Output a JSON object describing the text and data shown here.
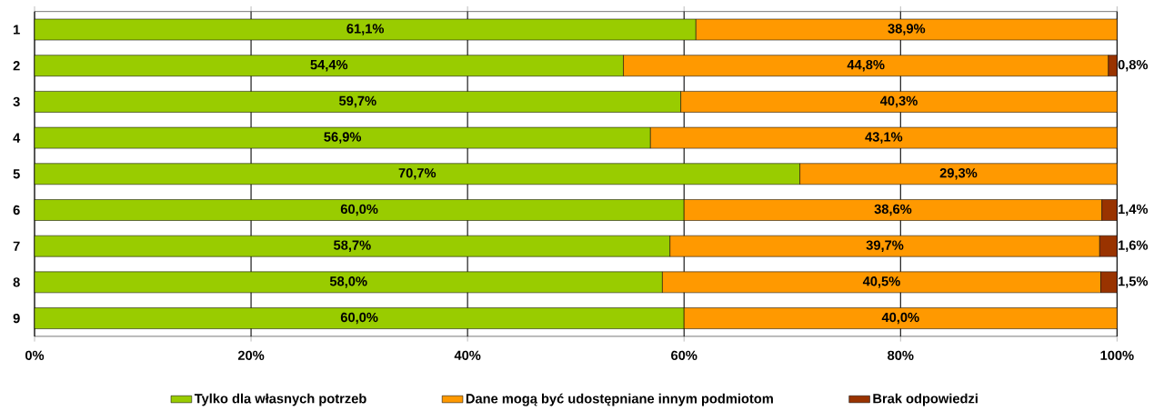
{
  "chart_data": {
    "type": "bar",
    "orientation": "horizontal",
    "stacked": true,
    "grid": "x",
    "legend": "bottom",
    "categories": [
      "1",
      "2",
      "3",
      "4",
      "5",
      "6",
      "7",
      "8",
      "9"
    ],
    "xlim": [
      0,
      100
    ],
    "xticks": [
      {
        "value": 0,
        "label": "0%"
      },
      {
        "value": 20,
        "label": "20%"
      },
      {
        "value": 40,
        "label": "40%"
      },
      {
        "value": 60,
        "label": "60%"
      },
      {
        "value": 80,
        "label": "80%"
      },
      {
        "value": 100,
        "label": "100%"
      }
    ],
    "series": [
      {
        "name": "Tylko dla własnych potrzeb",
        "color": "#99cc00",
        "values": [
          61.1,
          54.4,
          59.7,
          56.9,
          70.7,
          60.0,
          58.7,
          58.0,
          60.0
        ],
        "value_labels": [
          "61,1%",
          "54,4%",
          "59,7%",
          "56,9%",
          "70,7%",
          "60,0%",
          "58,7%",
          "58,0%",
          "60,0%"
        ]
      },
      {
        "name": "Dane mogą być udostępniane innym podmiotom",
        "color": "#ff9900",
        "values": [
          38.9,
          44.8,
          40.3,
          43.1,
          29.3,
          38.6,
          39.7,
          40.5,
          40.0
        ],
        "value_labels": [
          "38,9%",
          "44,8%",
          "40,3%",
          "43,1%",
          "29,3%",
          "38,6%",
          "39,7%",
          "40,5%",
          "40,0%"
        ]
      },
      {
        "name": "Brak odpowiedzi",
        "color": "#993300",
        "values": [
          null,
          0.8,
          null,
          null,
          null,
          1.4,
          1.6,
          1.5,
          null
        ],
        "value_labels": [
          null,
          "0,8%",
          null,
          null,
          null,
          "1,4%",
          "1,6%",
          "1,5%",
          null
        ]
      }
    ]
  }
}
